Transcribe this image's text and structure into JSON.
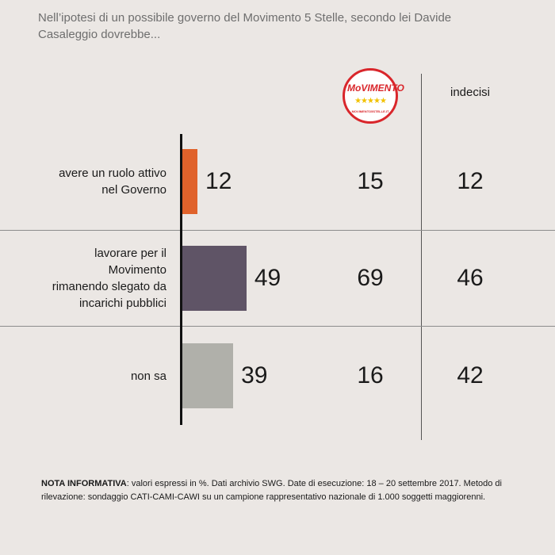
{
  "header": {
    "title": "Nell’ipotesi di un possibile governo del Movimento 5 Stelle, secondo lei Davide Casaleggio dovrebbe..."
  },
  "columns": {
    "logo_text": "MoVIMENTO",
    "logo_stars": "★★★★★",
    "logo_caption": "MOVIMENTO5STELLE.IT",
    "undecided_header": "indecisi"
  },
  "chart_data": {
    "type": "bar",
    "orientation": "horizontal",
    "categories": [
      "avere un ruolo attivo nel Governo",
      "lavorare per il Movimento rimanendo slegato da incarichi pubblici",
      "non sa"
    ],
    "values": [
      12,
      49,
      39
    ],
    "value_labels": [
      "12",
      "49",
      "39"
    ],
    "bar_colors": [
      "#e0622b",
      "#5f5466",
      "#b0b0aa"
    ],
    "xlim": [
      0,
      100
    ],
    "grid": false,
    "extra_columns": [
      {
        "header_logo": "MoVIMENTO",
        "values": [
          "15",
          "69",
          "16"
        ]
      },
      {
        "header": "indecisi",
        "values": [
          "12",
          "46",
          "42"
        ]
      }
    ]
  },
  "footnote": {
    "label": "NOTA INFORMATIVA",
    "text": ": valori espressi in %. Dati archivio SWG. Date di esecuzione: 18 – 20 settembre 2017. Metodo di rilevazione: sondaggio CATI-CAMI-CAWI su un campione rappresentativo nazionale di 1.000 soggetti maggiorenni."
  }
}
